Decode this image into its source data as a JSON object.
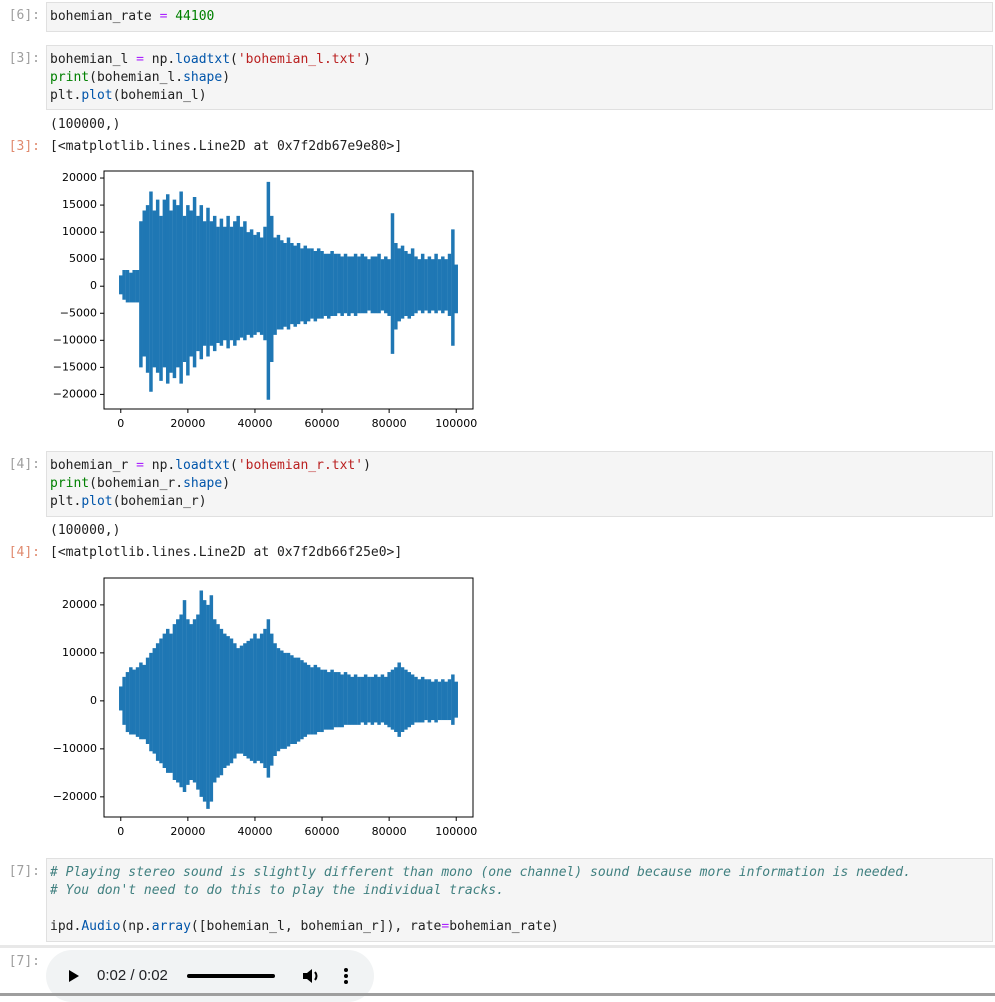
{
  "cells": [
    {
      "prompt": "[6]:",
      "code": [
        [
          {
            "text": "bohemian_rate ",
            "color": "#212121"
          },
          {
            "text": "=",
            "color": "#aa22ff"
          },
          {
            "text": " ",
            "color": "#212121"
          },
          {
            "text": "44100",
            "color": "#008000"
          }
        ]
      ]
    },
    {
      "prompt": "[3]:",
      "code": [
        [
          {
            "text": "bohemian_l ",
            "color": "#212121"
          },
          {
            "text": "=",
            "color": "#aa22ff"
          },
          {
            "text": " np.",
            "color": "#212121"
          },
          {
            "text": "loadtxt",
            "color": "#0055aa"
          },
          {
            "text": "(",
            "color": "#212121"
          },
          {
            "text": "'bohemian_l.txt'",
            "color": "#ba2121"
          },
          {
            "text": ")",
            "color": "#212121"
          }
        ],
        [
          {
            "text": "print",
            "color": "#008000"
          },
          {
            "text": "(bohemian_l.",
            "color": "#212121"
          },
          {
            "text": "shape",
            "color": "#0055aa"
          },
          {
            "text": ")",
            "color": "#212121"
          }
        ],
        [
          {
            "text": "plt.",
            "color": "#212121"
          },
          {
            "text": "plot",
            "color": "#0055aa"
          },
          {
            "text": "(bohemian_l)",
            "color": "#212121"
          }
        ]
      ],
      "stdout": "(100000,)",
      "result_prompt": "[3]:",
      "result": "[<matplotlib.lines.Line2D at 0x7f2db67e9e80>]"
    },
    {
      "prompt": "[4]:",
      "code": [
        [
          {
            "text": "bohemian_r ",
            "color": "#212121"
          },
          {
            "text": "=",
            "color": "#aa22ff"
          },
          {
            "text": " np.",
            "color": "#212121"
          },
          {
            "text": "loadtxt",
            "color": "#0055aa"
          },
          {
            "text": "(",
            "color": "#212121"
          },
          {
            "text": "'bohemian_r.txt'",
            "color": "#ba2121"
          },
          {
            "text": ")",
            "color": "#212121"
          }
        ],
        [
          {
            "text": "print",
            "color": "#008000"
          },
          {
            "text": "(bohemian_r.",
            "color": "#212121"
          },
          {
            "text": "shape",
            "color": "#0055aa"
          },
          {
            "text": ")",
            "color": "#212121"
          }
        ],
        [
          {
            "text": "plt.",
            "color": "#212121"
          },
          {
            "text": "plot",
            "color": "#0055aa"
          },
          {
            "text": "(bohemian_r)",
            "color": "#212121"
          }
        ]
      ],
      "stdout": "(100000,)",
      "result_prompt": "[4]:",
      "result": "[<matplotlib.lines.Line2D at 0x7f2db66f25e0>]"
    },
    {
      "prompt": "[7]:",
      "code": [
        [
          {
            "text": "# Playing stereo sound is slightly different than mono (one channel) sound because more information is needed.",
            "color": "#408080",
            "italic": true
          }
        ],
        [
          {
            "text": "# You don't need to do this to play the individual tracks.",
            "color": "#408080",
            "italic": true
          }
        ],
        [],
        [
          {
            "text": "ipd.",
            "color": "#212121"
          },
          {
            "text": "Audio",
            "color": "#0055aa"
          },
          {
            "text": "(np.",
            "color": "#212121"
          },
          {
            "text": "array",
            "color": "#0055aa"
          },
          {
            "text": "([bohemian_l, bohemian_r]), rate",
            "color": "#212121"
          },
          {
            "text": "=",
            "color": "#aa22ff"
          },
          {
            "text": "bohemian_rate)",
            "color": "#212121"
          }
        ]
      ],
      "result_prompt": "[7]:",
      "audio_time": "0:02 / 0:02"
    }
  ],
  "chart_data": [
    {
      "type": "line",
      "xlim": [
        -5000,
        105000
      ],
      "ylim": [
        -22700,
        21300
      ],
      "xticks": [
        0,
        20000,
        40000,
        60000,
        80000,
        100000
      ],
      "yticks": [
        {
          "value": -20000,
          "label": "−20000"
        },
        {
          "value": -15000,
          "label": "−15000"
        },
        {
          "value": -10000,
          "label": "−10000"
        },
        {
          "value": -5000,
          "label": "−5000"
        },
        0,
        5000,
        10000,
        15000,
        20000
      ],
      "x": [
        0,
        1000,
        2000,
        3000,
        4000,
        5000,
        6000,
        7000,
        8000,
        9000,
        10000,
        11000,
        12000,
        13000,
        14000,
        15000,
        16000,
        17000,
        18000,
        19000,
        20000,
        21000,
        22000,
        23000,
        24000,
        25000,
        26000,
        27000,
        28000,
        29000,
        30000,
        31000,
        32000,
        33000,
        34000,
        35000,
        36000,
        37000,
        38000,
        39000,
        40000,
        41000,
        42000,
        43000,
        44000,
        45000,
        46000,
        47000,
        48000,
        49000,
        50000,
        51000,
        52000,
        53000,
        54000,
        55000,
        56000,
        57000,
        58000,
        59000,
        60000,
        61000,
        62000,
        63000,
        64000,
        65000,
        66000,
        67000,
        68000,
        69000,
        70000,
        71000,
        72000,
        73000,
        74000,
        75000,
        76000,
        77000,
        78000,
        79000,
        80000,
        81000,
        82000,
        83000,
        84000,
        85000,
        86000,
        87000,
        88000,
        89000,
        90000,
        91000,
        92000,
        93000,
        94000,
        95000,
        96000,
        97000,
        98000,
        99000,
        100000
      ],
      "series": [
        {
          "color": "#1f77b4",
          "values": [
            2000,
            3000,
            3000,
            2500,
            3000,
            3000,
            12000,
            14000,
            15000,
            17500,
            14000,
            16000,
            13000,
            16000,
            17000,
            14000,
            16000,
            15000,
            17500,
            13000,
            15000,
            14000,
            16500,
            13000,
            15000,
            12000,
            14500,
            12000,
            13000,
            11000,
            12500,
            11000,
            13000,
            11000,
            12000,
            13000,
            11000,
            12000,
            10000,
            10500,
            9500,
            10000,
            9000,
            11000,
            19300,
            13000,
            9000,
            9500,
            8500,
            8000,
            9000,
            8000,
            7500,
            8000,
            7000,
            7500,
            7000,
            7000,
            6500,
            7000,
            6500,
            6000,
            6000,
            6500,
            6000,
            6000,
            5500,
            6000,
            5500,
            5500,
            6000,
            5500,
            6000,
            5500,
            5000,
            5500,
            5500,
            6000,
            5000,
            5500,
            5000,
            13500,
            8000,
            7000,
            7500,
            6500,
            6000,
            7000,
            5500,
            5000,
            6000,
            5000,
            5500,
            5000,
            6000,
            5000,
            5500,
            5000,
            6000,
            10500,
            4000
          ]
        },
        {
          "color": "#1f77b4",
          "values": [
            -1500,
            -2500,
            -3000,
            -3000,
            -3000,
            -3000,
            -15000,
            -13000,
            -16000,
            -19500,
            -15000,
            -16000,
            -17500,
            -15000,
            -18000,
            -16000,
            -17000,
            -15000,
            -18000,
            -14000,
            -16500,
            -13000,
            -15000,
            -12000,
            -13500,
            -11000,
            -13000,
            -11000,
            -12000,
            -10500,
            -11000,
            -10000,
            -11500,
            -10000,
            -11000,
            -10000,
            -9500,
            -10000,
            -9000,
            -9500,
            -9000,
            -8500,
            -9000,
            -10000,
            -21000,
            -14000,
            -9000,
            -8000,
            -8000,
            -7500,
            -8000,
            -7000,
            -7500,
            -7000,
            -6500,
            -7000,
            -6500,
            -6000,
            -6500,
            -6000,
            -6000,
            -5500,
            -6000,
            -5500,
            -5500,
            -5000,
            -5500,
            -5000,
            -5500,
            -5000,
            -5500,
            -5000,
            -5000,
            -5000,
            -4500,
            -5000,
            -5000,
            -5000,
            -4500,
            -5000,
            -5500,
            -12500,
            -8000,
            -6500,
            -6000,
            -5500,
            -6000,
            -5500,
            -5000,
            -4500,
            -5000,
            -4500,
            -5000,
            -4500,
            -5000,
            -4500,
            -5000,
            -4500,
            -5500,
            -11000,
            -5000
          ]
        }
      ]
    },
    {
      "type": "line",
      "xlim": [
        -5000,
        105000
      ],
      "ylim": [
        -24200,
        25600
      ],
      "xticks": [
        0,
        20000,
        40000,
        60000,
        80000,
        100000
      ],
      "yticks": [
        {
          "value": -20000,
          "label": "−20000"
        },
        {
          "value": -10000,
          "label": "−10000"
        },
        0,
        10000,
        20000
      ],
      "x": [
        0,
        1000,
        2000,
        3000,
        4000,
        5000,
        6000,
        7000,
        8000,
        9000,
        10000,
        11000,
        12000,
        13000,
        14000,
        15000,
        16000,
        17000,
        18000,
        19000,
        20000,
        21000,
        22000,
        23000,
        24000,
        25000,
        26000,
        27000,
        28000,
        29000,
        30000,
        31000,
        32000,
        33000,
        34000,
        35000,
        36000,
        37000,
        38000,
        39000,
        40000,
        41000,
        42000,
        43000,
        44000,
        45000,
        46000,
        47000,
        48000,
        49000,
        50000,
        51000,
        52000,
        53000,
        54000,
        55000,
        56000,
        57000,
        58000,
        59000,
        60000,
        61000,
        62000,
        63000,
        64000,
        65000,
        66000,
        67000,
        68000,
        69000,
        70000,
        71000,
        72000,
        73000,
        74000,
        75000,
        76000,
        77000,
        78000,
        79000,
        80000,
        81000,
        82000,
        83000,
        84000,
        85000,
        86000,
        87000,
        88000,
        89000,
        90000,
        91000,
        92000,
        93000,
        94000,
        95000,
        96000,
        97000,
        98000,
        99000,
        100000
      ],
      "series": [
        {
          "color": "#1f77b4",
          "values": [
            3000,
            5000,
            6000,
            7000,
            6500,
            7000,
            8000,
            7500,
            9000,
            10000,
            11000,
            12000,
            13000,
            14000,
            15000,
            14000,
            16000,
            17000,
            18000,
            21000,
            17000,
            16000,
            17000,
            18000,
            23000,
            21000,
            20000,
            22000,
            17000,
            16000,
            15000,
            14000,
            13500,
            13000,
            12000,
            11000,
            11500,
            12000,
            12500,
            13000,
            14000,
            13000,
            14000,
            15000,
            17000,
            14000,
            12000,
            11000,
            10500,
            10000,
            10000,
            9500,
            9000,
            9000,
            8500,
            8000,
            7500,
            7000,
            7500,
            7000,
            6500,
            6500,
            6000,
            6500,
            6000,
            6000,
            5500,
            6000,
            5500,
            5000,
            5500,
            5000,
            5000,
            5500,
            5000,
            5000,
            5500,
            5000,
            5500,
            5000,
            6000,
            6500,
            7000,
            8000,
            7000,
            6500,
            6000,
            5500,
            5000,
            4500,
            5000,
            4500,
            4500,
            4000,
            4500,
            4000,
            4500,
            4000,
            4500,
            5500,
            4000
          ]
        },
        {
          "color": "#1f77b4",
          "values": [
            -2000,
            -5000,
            -6500,
            -7000,
            -7000,
            -7500,
            -8000,
            -8000,
            -9000,
            -10500,
            -11000,
            -12500,
            -13000,
            -14000,
            -15000,
            -15000,
            -16500,
            -17000,
            -18000,
            -19000,
            -17500,
            -16500,
            -17000,
            -18500,
            -20000,
            -21000,
            -22500,
            -21000,
            -17000,
            -16000,
            -15500,
            -14000,
            -13500,
            -13000,
            -12000,
            -11000,
            -11000,
            -11500,
            -12000,
            -12500,
            -13000,
            -12500,
            -13000,
            -14000,
            -16000,
            -13500,
            -11500,
            -10500,
            -10000,
            -10000,
            -9500,
            -9000,
            -9000,
            -8500,
            -8000,
            -7500,
            -7000,
            -7000,
            -7000,
            -6500,
            -6500,
            -6000,
            -6000,
            -6000,
            -5500,
            -5500,
            -5500,
            -5000,
            -5000,
            -5000,
            -5000,
            -5000,
            -4500,
            -5000,
            -4500,
            -5000,
            -4500,
            -5000,
            -4500,
            -5000,
            -5500,
            -6000,
            -6500,
            -7500,
            -6500,
            -6000,
            -5500,
            -5000,
            -4500,
            -4500,
            -4500,
            -4000,
            -4500,
            -4000,
            -4500,
            -4000,
            -4000,
            -4000,
            -4000,
            -5000,
            -3500
          ]
        }
      ]
    }
  ]
}
